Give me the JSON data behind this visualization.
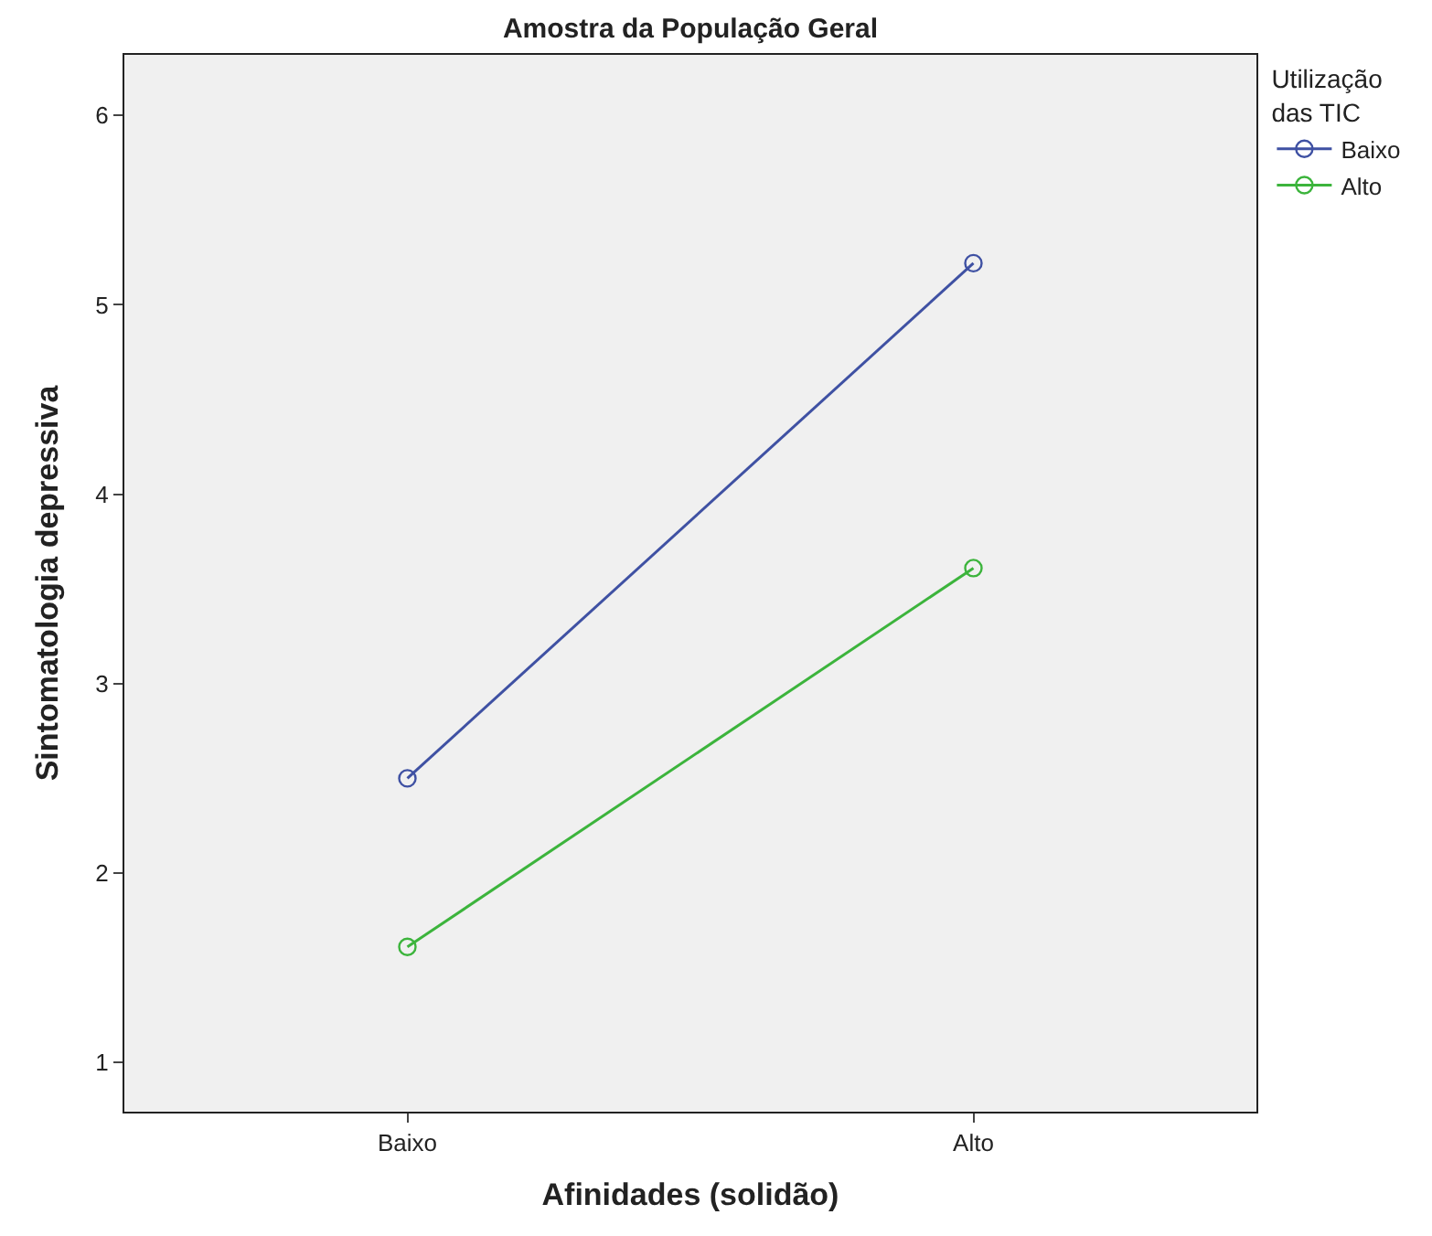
{
  "chart_data": {
    "type": "line",
    "title": "Amostra da População Geral",
    "xlabel": "Afinidades (solidão)",
    "ylabel": "Sintomatologia depressiva",
    "legend_title": "Utilização das TIC",
    "categories": [
      "Baixo",
      "Alto"
    ],
    "series": [
      {
        "name": "Baixo",
        "color": "#3f51a3",
        "values": [
          2.5,
          5.22
        ]
      },
      {
        "name": "Alto",
        "color": "#3cb43c",
        "values": [
          1.61,
          3.61
        ]
      }
    ],
    "ylim": [
      0.74,
      6.32
    ],
    "yticks": [
      1,
      2,
      3,
      4,
      5,
      6
    ],
    "grid": false,
    "legend": "top right",
    "marker": "circle",
    "line_style": "solid"
  }
}
